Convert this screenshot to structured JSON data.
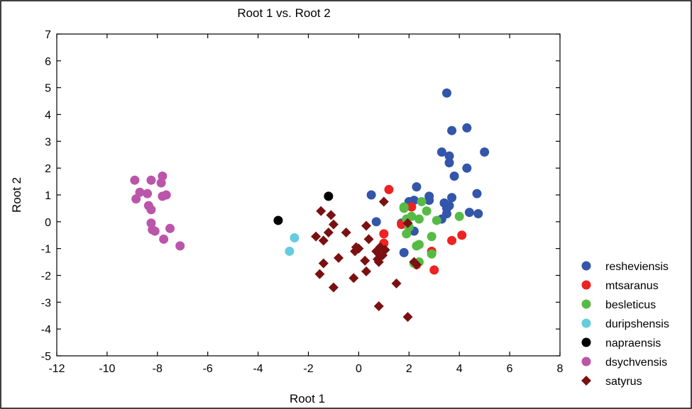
{
  "chart_data": {
    "type": "scatter",
    "title": "Root 1 vs. Root 2",
    "xlabel": "Root 1",
    "ylabel": "Root 2",
    "xlim": [
      -12,
      8
    ],
    "ylim": [
      -5,
      7
    ],
    "xticks": [
      -12,
      -10,
      -8,
      -6,
      -4,
      -2,
      0,
      2,
      4,
      6,
      8
    ],
    "yticks": [
      -5,
      -4,
      -3,
      -2,
      -1,
      0,
      1,
      2,
      3,
      4,
      5,
      6,
      7
    ],
    "grid": false,
    "legend_position": "bottom-right",
    "series": [
      {
        "name": "resheviensis",
        "color": "#3355aa",
        "marker": "circle",
        "points": [
          [
            3.5,
            4.8
          ],
          [
            3.7,
            3.4
          ],
          [
            4.3,
            3.5
          ],
          [
            5.0,
            2.6
          ],
          [
            3.3,
            2.6
          ],
          [
            3.6,
            2.45
          ],
          [
            3.6,
            2.2
          ],
          [
            4.3,
            2.0
          ],
          [
            3.8,
            1.7
          ],
          [
            2.3,
            1.3
          ],
          [
            0.5,
            1.0
          ],
          [
            4.7,
            1.05
          ],
          [
            2.8,
            0.95
          ],
          [
            3.7,
            0.9
          ],
          [
            2.2,
            0.8
          ],
          [
            2.0,
            0.75
          ],
          [
            2.8,
            0.8
          ],
          [
            3.4,
            0.7
          ],
          [
            3.6,
            0.6
          ],
          [
            3.5,
            0.5
          ],
          [
            4.4,
            0.35
          ],
          [
            4.75,
            0.3
          ],
          [
            3.5,
            0.3
          ],
          [
            0.7,
            0.0
          ],
          [
            1.7,
            -0.05
          ],
          [
            2.2,
            -0.35
          ],
          [
            1.8,
            -1.15
          ],
          [
            3.3,
            0.1
          ]
        ]
      },
      {
        "name": "mtsaranus",
        "color": "#ee2222",
        "marker": "circle",
        "points": [
          [
            1.2,
            1.2
          ],
          [
            2.1,
            0.55
          ],
          [
            1.7,
            -0.1
          ],
          [
            1.0,
            -0.45
          ],
          [
            1.0,
            -0.8
          ],
          [
            4.1,
            -0.5
          ],
          [
            3.7,
            -0.7
          ],
          [
            2.9,
            -1.1
          ],
          [
            3.0,
            -1.8
          ],
          [
            2.3,
            -1.6
          ]
        ]
      },
      {
        "name": "besleticus",
        "color": "#55bb44",
        "marker": "circle",
        "points": [
          [
            2.5,
            0.75
          ],
          [
            1.8,
            0.55
          ],
          [
            2.7,
            0.4
          ],
          [
            2.1,
            0.2
          ],
          [
            1.9,
            0.1
          ],
          [
            2.4,
            0.1
          ],
          [
            3.1,
            0.05
          ],
          [
            4.0,
            0.2
          ],
          [
            2.0,
            -0.2
          ],
          [
            1.9,
            -0.45
          ],
          [
            2.9,
            -0.55
          ],
          [
            2.4,
            -0.85
          ],
          [
            2.3,
            -0.9
          ],
          [
            2.9,
            -1.2
          ],
          [
            2.2,
            -1.55
          ],
          [
            2.4,
            -1.5
          ],
          [
            1.8,
            0.5
          ]
        ]
      },
      {
        "name": "duripshensis",
        "color": "#66ccdd",
        "marker": "circle",
        "points": [
          [
            -2.55,
            -0.6
          ],
          [
            -2.75,
            -1.1
          ]
        ]
      },
      {
        "name": "napraensis",
        "color": "#000000",
        "marker": "circle",
        "points": [
          [
            -1.2,
            0.95
          ],
          [
            -3.2,
            0.05
          ]
        ]
      },
      {
        "name": "dsychvensis",
        "color": "#bb55aa",
        "marker": "circle",
        "points": [
          [
            -8.9,
            1.55
          ],
          [
            -8.25,
            1.55
          ],
          [
            -7.8,
            1.7
          ],
          [
            -7.85,
            1.45
          ],
          [
            -8.7,
            1.1
          ],
          [
            -8.4,
            1.05
          ],
          [
            -7.65,
            1.0
          ],
          [
            -7.8,
            0.95
          ],
          [
            -8.85,
            0.85
          ],
          [
            -8.35,
            0.6
          ],
          [
            -8.25,
            0.45
          ],
          [
            -8.25,
            -0.05
          ],
          [
            -8.2,
            -0.3
          ],
          [
            -8.1,
            -0.35
          ],
          [
            -7.5,
            -0.25
          ],
          [
            -7.75,
            -0.65
          ],
          [
            -7.1,
            -0.9
          ]
        ]
      },
      {
        "name": "satyrus",
        "color": "#7a1010",
        "marker": "diamond",
        "points": [
          [
            -1.5,
            0.4
          ],
          [
            -1.1,
            0.25
          ],
          [
            1.0,
            0.75
          ],
          [
            -1.0,
            -0.1
          ],
          [
            0.3,
            -0.15
          ],
          [
            1.95,
            -0.05
          ],
          [
            -1.2,
            -0.4
          ],
          [
            -0.5,
            -0.4
          ],
          [
            -1.7,
            -0.55
          ],
          [
            -1.4,
            -0.7
          ],
          [
            0.4,
            -0.65
          ],
          [
            -0.1,
            -0.95
          ],
          [
            0.0,
            -1.0
          ],
          [
            0.85,
            -0.95
          ],
          [
            1.05,
            -1.05
          ],
          [
            0.7,
            -1.1
          ],
          [
            -0.15,
            -1.1
          ],
          [
            0.95,
            -1.25
          ],
          [
            0.8,
            -1.2
          ],
          [
            0.75,
            -1.4
          ],
          [
            0.25,
            -1.45
          ],
          [
            -0.8,
            -1.35
          ],
          [
            -1.4,
            -1.55
          ],
          [
            0.8,
            -1.5
          ],
          [
            2.2,
            -1.5
          ],
          [
            2.3,
            -1.6
          ],
          [
            0.3,
            -1.85
          ],
          [
            -1.55,
            -1.95
          ],
          [
            -0.2,
            -2.1
          ],
          [
            1.5,
            -2.3
          ],
          [
            -1.0,
            -2.45
          ],
          [
            0.8,
            -3.15
          ],
          [
            1.95,
            -3.55
          ]
        ]
      }
    ]
  }
}
